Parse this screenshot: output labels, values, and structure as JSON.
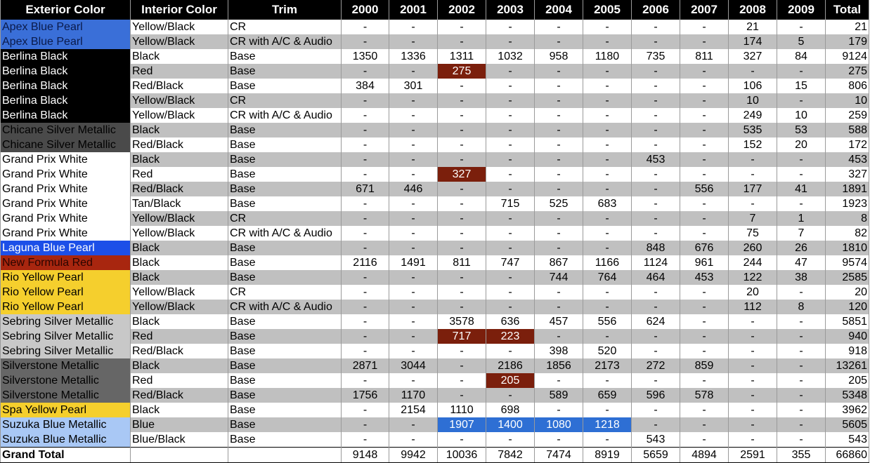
{
  "table": {
    "header": [
      "Exterior Color",
      "Interior Color",
      "Trim",
      "2000",
      "2001",
      "2002",
      "2003",
      "2004",
      "2005",
      "2006",
      "2007",
      "2008",
      "2009",
      "Total"
    ],
    "rows": [
      {
        "cells": [
          "Apex Blue Pearl",
          "Yellow/Black",
          "CR",
          "-",
          "-",
          "-",
          "-",
          "-",
          "-",
          "-",
          "-",
          21,
          "-",
          21
        ],
        "swatch": "#3a6fd8",
        "swatch_text": "#0a1a4a"
      },
      {
        "cells": [
          "Apex Blue Pearl",
          "Yellow/Black",
          "CR with A/C & Audio",
          "-",
          "-",
          "-",
          "-",
          "-",
          "-",
          "-",
          "-",
          174,
          5,
          179
        ],
        "swatch": "#3a6fd8",
        "swatch_text": "#0a1a4a"
      },
      {
        "cells": [
          "Berlina Black",
          "Black",
          "Base",
          1350,
          1336,
          1311,
          1032,
          958,
          1180,
          735,
          811,
          327,
          84,
          9124
        ],
        "swatch": "#000000",
        "swatch_text": "#ffffff"
      },
      {
        "cells": [
          "Berlina Black",
          "Red",
          "Base",
          "-",
          "-",
          275,
          "-",
          "-",
          "-",
          "-",
          "-",
          "-",
          "-",
          275
        ],
        "swatch": "#000000",
        "swatch_text": "#ffffff",
        "highlight": {
          "color": "#7b1f0c",
          "cols": [
            5
          ]
        }
      },
      {
        "cells": [
          "Berlina Black",
          "Red/Black",
          "Base",
          384,
          301,
          "-",
          "-",
          "-",
          "-",
          "-",
          "-",
          106,
          15,
          806
        ],
        "swatch": "#000000",
        "swatch_text": "#ffffff"
      },
      {
        "cells": [
          "Berlina Black",
          "Yellow/Black",
          "CR",
          "-",
          "-",
          "-",
          "-",
          "-",
          "-",
          "-",
          "-",
          10,
          "-",
          10
        ],
        "swatch": "#000000",
        "swatch_text": "#ffffff"
      },
      {
        "cells": [
          "Berlina Black",
          "Yellow/Black",
          "CR with A/C & Audio",
          "-",
          "-",
          "-",
          "-",
          "-",
          "-",
          "-",
          "-",
          249,
          10,
          259
        ],
        "swatch": "#000000",
        "swatch_text": "#ffffff"
      },
      {
        "cells": [
          "Chicane Silver Metallic",
          "Black",
          "Base",
          "-",
          "-",
          "-",
          "-",
          "-",
          "-",
          "-",
          "-",
          535,
          53,
          588
        ],
        "swatch": "#4a4a4a",
        "swatch_text": "#000000"
      },
      {
        "cells": [
          "Chicane Silver Metallic",
          "Red/Black",
          "Base",
          "-",
          "-",
          "-",
          "-",
          "-",
          "-",
          "-",
          "-",
          152,
          20,
          172
        ],
        "swatch": "#4a4a4a",
        "swatch_text": "#000000"
      },
      {
        "cells": [
          "Grand Prix White",
          "Black",
          "Base",
          "-",
          "-",
          "-",
          "-",
          "-",
          "-",
          453,
          "-",
          "-",
          "-",
          453
        ],
        "swatch": "#ffffff",
        "swatch_text": "#000000"
      },
      {
        "cells": [
          "Grand Prix White",
          "Red",
          "Base",
          "-",
          "-",
          327,
          "-",
          "-",
          "-",
          "-",
          "-",
          "-",
          "-",
          327
        ],
        "swatch": "#ffffff",
        "swatch_text": "#000000",
        "highlight": {
          "color": "#7b1f0c",
          "cols": [
            5
          ]
        }
      },
      {
        "cells": [
          "Grand Prix White",
          "Red/Black",
          "Base",
          671,
          446,
          "-",
          "-",
          "-",
          "-",
          "-",
          556,
          177,
          41,
          1891
        ],
        "swatch": "#ffffff",
        "swatch_text": "#000000"
      },
      {
        "cells": [
          "Grand Prix White",
          "Tan/Black",
          "Base",
          "-",
          "-",
          "-",
          715,
          525,
          683,
          "-",
          "-",
          "-",
          "-",
          1923
        ],
        "swatch": "#ffffff",
        "swatch_text": "#000000"
      },
      {
        "cells": [
          "Grand Prix White",
          "Yellow/Black",
          "CR",
          "-",
          "-",
          "-",
          "-",
          "-",
          "-",
          "-",
          "-",
          7,
          1,
          8
        ],
        "swatch": "#ffffff",
        "swatch_text": "#000000"
      },
      {
        "cells": [
          "Grand Prix White",
          "Yellow/Black",
          "CR with A/C & Audio",
          "-",
          "-",
          "-",
          "-",
          "-",
          "-",
          "-",
          "-",
          75,
          7,
          82
        ],
        "swatch": "#ffffff",
        "swatch_text": "#000000"
      },
      {
        "cells": [
          "Laguna Blue Pearl",
          "Black",
          "Base",
          "-",
          "-",
          "-",
          "-",
          "-",
          "-",
          848,
          676,
          260,
          26,
          1810
        ],
        "swatch": "#1c4fe8",
        "swatch_text": "#ffffff"
      },
      {
        "cells": [
          "New Formula Red",
          "Black",
          "Base",
          2116,
          1491,
          811,
          747,
          867,
          1166,
          1124,
          961,
          244,
          47,
          9574
        ],
        "swatch": "#a8260f",
        "swatch_text": "#2a0500"
      },
      {
        "cells": [
          "Rio Yellow Pearl",
          "Black",
          "Base",
          "-",
          "-",
          "-",
          "-",
          744,
          764,
          464,
          453,
          122,
          38,
          2585
        ],
        "swatch": "#f5cf2d",
        "swatch_text": "#000000"
      },
      {
        "cells": [
          "Rio Yellow Pearl",
          "Yellow/Black",
          "CR",
          "-",
          "-",
          "-",
          "-",
          "-",
          "-",
          "-",
          "-",
          20,
          "-",
          20
        ],
        "swatch": "#f5cf2d",
        "swatch_text": "#000000"
      },
      {
        "cells": [
          "Rio Yellow Pearl",
          "Yellow/Black",
          "CR with A/C & Audio",
          "-",
          "-",
          "-",
          "-",
          "-",
          "-",
          "-",
          "-",
          112,
          8,
          120
        ],
        "swatch": "#f5cf2d",
        "swatch_text": "#000000"
      },
      {
        "cells": [
          "Sebring Silver Metallic",
          "Black",
          "Base",
          "-",
          "-",
          3578,
          636,
          457,
          556,
          624,
          "-",
          "-",
          "-",
          5851
        ],
        "swatch": "#c8c8c8",
        "swatch_text": "#000000"
      },
      {
        "cells": [
          "Sebring Silver Metallic",
          "Red",
          "Base",
          "-",
          "-",
          717,
          223,
          "-",
          "-",
          "-",
          "-",
          "-",
          "-",
          940
        ],
        "swatch": "#c8c8c8",
        "swatch_text": "#000000",
        "highlight": {
          "color": "#7b1f0c",
          "cols": [
            5,
            6
          ]
        }
      },
      {
        "cells": [
          "Sebring Silver Metallic",
          "Red/Black",
          "Base",
          "-",
          "-",
          "-",
          "-",
          398,
          520,
          "-",
          "-",
          "-",
          "-",
          918
        ],
        "swatch": "#c8c8c8",
        "swatch_text": "#000000"
      },
      {
        "cells": [
          "Silverstone Metallic",
          "Black",
          "Base",
          2871,
          3044,
          "-",
          2186,
          1856,
          2173,
          272,
          859,
          "-",
          "-",
          13261
        ],
        "swatch": "#666666",
        "swatch_text": "#000000"
      },
      {
        "cells": [
          "Silverstone Metallic",
          "Red",
          "Base",
          "-",
          "-",
          "-",
          205,
          "-",
          "-",
          "-",
          "-",
          "-",
          "-",
          205
        ],
        "swatch": "#666666",
        "swatch_text": "#000000",
        "highlight": {
          "color": "#7b1f0c",
          "cols": [
            6
          ]
        }
      },
      {
        "cells": [
          "Silverstone Metallic",
          "Red/Black",
          "Base",
          1756,
          1170,
          "-",
          "-",
          589,
          659,
          596,
          578,
          "-",
          "-",
          5348
        ],
        "swatch": "#666666",
        "swatch_text": "#000000"
      },
      {
        "cells": [
          "Spa Yellow Pearl",
          "Black",
          "Base",
          "-",
          2154,
          1110,
          698,
          "-",
          "-",
          "-",
          "-",
          "-",
          "-",
          3962
        ],
        "swatch": "#f5cf2d",
        "swatch_text": "#000000"
      },
      {
        "cells": [
          "Suzuka Blue Metallic",
          "Blue",
          "Base",
          "-",
          "-",
          1907,
          1400,
          1080,
          1218,
          "-",
          "-",
          "-",
          "-",
          5605
        ],
        "swatch": "#a9c8f5",
        "swatch_text": "#000000",
        "highlight": {
          "color": "#2e6fd4",
          "cols": [
            5,
            6,
            7,
            8
          ]
        }
      },
      {
        "cells": [
          "Suzuka Blue Metallic",
          "Blue/Black",
          "Base",
          "-",
          "-",
          "-",
          "-",
          "-",
          "-",
          543,
          "-",
          "-",
          "-",
          543
        ],
        "swatch": "#a9c8f5",
        "swatch_text": "#000000"
      }
    ],
    "grand_total": {
      "label": "Grand Total",
      "years": [
        9148,
        9942,
        10036,
        7842,
        7474,
        8919,
        5659,
        4894,
        2591,
        355
      ],
      "total": 66860
    }
  }
}
